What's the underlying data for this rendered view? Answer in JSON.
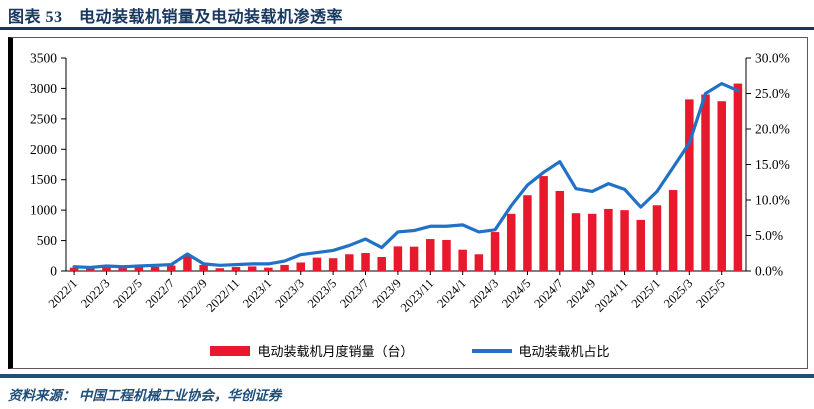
{
  "header": {
    "title": "图表 53　电动装载机销量及电动装载机渗透率"
  },
  "footer": {
    "source": "资料来源： 中国工程机械工业协会，华创证券"
  },
  "colors": {
    "accent_navy": "#17375E",
    "rule_navy": "#1F4E79",
    "bar_red": "#E8192C",
    "line_blue": "#2171C7",
    "axis_black": "#000000"
  },
  "chart_data": {
    "type": "bar",
    "subtype": "bar+line combo, dual axis",
    "grid": false,
    "legend_position": "bottom",
    "label_every": 2,
    "categories": [
      "2022/1",
      "2022/2",
      "2022/3",
      "2022/4",
      "2022/5",
      "2022/6",
      "2022/7",
      "2022/8",
      "2022/9",
      "2022/10",
      "2022/11",
      "2022/12",
      "2023/1",
      "2023/2",
      "2023/3",
      "2023/4",
      "2023/5",
      "2023/6",
      "2023/7",
      "2023/8",
      "2023/9",
      "2023/10",
      "2023/11",
      "2023/12",
      "2024/1",
      "2024/2",
      "2024/3",
      "2024/4",
      "2024/5",
      "2024/6",
      "2024/7",
      "2024/8",
      "2024/9",
      "2024/10",
      "2024/11",
      "2024/12",
      "2025/1",
      "2025/2",
      "2025/3",
      "2025/4",
      "2025/5",
      "2025/6"
    ],
    "x_tick_labels": [
      "2022/1",
      "2022/3",
      "2022/5",
      "2022/7",
      "2022/9",
      "2022/11",
      "2023/1",
      "2023/3",
      "2023/5",
      "2023/7",
      "2023/9",
      "2023/11",
      "2024/1",
      "2024/3",
      "2024/5",
      "2024/7",
      "2024/9",
      "2024/11",
      "2025/1",
      "2025/3",
      "2025/5"
    ],
    "series": [
      {
        "name": "电动装载机月度销量（台）",
        "type": "bar",
        "axis": "left",
        "color": "#E8192C",
        "values": [
          55,
          45,
          65,
          55,
          65,
          70,
          90,
          265,
          100,
          45,
          65,
          75,
          55,
          100,
          140,
          220,
          210,
          275,
          295,
          230,
          405,
          400,
          525,
          510,
          350,
          275,
          640,
          940,
          1245,
          1560,
          1315,
          950,
          940,
          1020,
          1000,
          840,
          1080,
          1330,
          2820,
          2900,
          2790,
          3080
        ]
      },
      {
        "name": "电动装载机占比",
        "type": "line",
        "axis": "right",
        "color": "#2171C7",
        "values": [
          0.6,
          0.5,
          0.7,
          0.6,
          0.7,
          0.8,
          0.9,
          2.4,
          1.0,
          0.8,
          0.9,
          1.0,
          1.0,
          1.4,
          2.3,
          2.6,
          2.9,
          3.6,
          4.5,
          3.3,
          5.5,
          5.7,
          6.3,
          6.3,
          6.5,
          5.5,
          5.8,
          9.2,
          12.1,
          13.9,
          15.4,
          11.6,
          11.2,
          12.3,
          11.5,
          9.0,
          11.2,
          14.6,
          18.0,
          25.0,
          26.4,
          25.4
        ]
      }
    ],
    "left_axis": {
      "min": 0,
      "max": 3500,
      "step": 500,
      "tick_labels": [
        "0",
        "500",
        "1000",
        "1500",
        "2000",
        "2500",
        "3000",
        "3500"
      ]
    },
    "right_axis": {
      "min": 0,
      "max": 30,
      "step": 5,
      "tick_labels": [
        "0.0%",
        "5.0%",
        "10.0%",
        "15.0%",
        "20.0%",
        "25.0%",
        "30.0%"
      ]
    }
  }
}
